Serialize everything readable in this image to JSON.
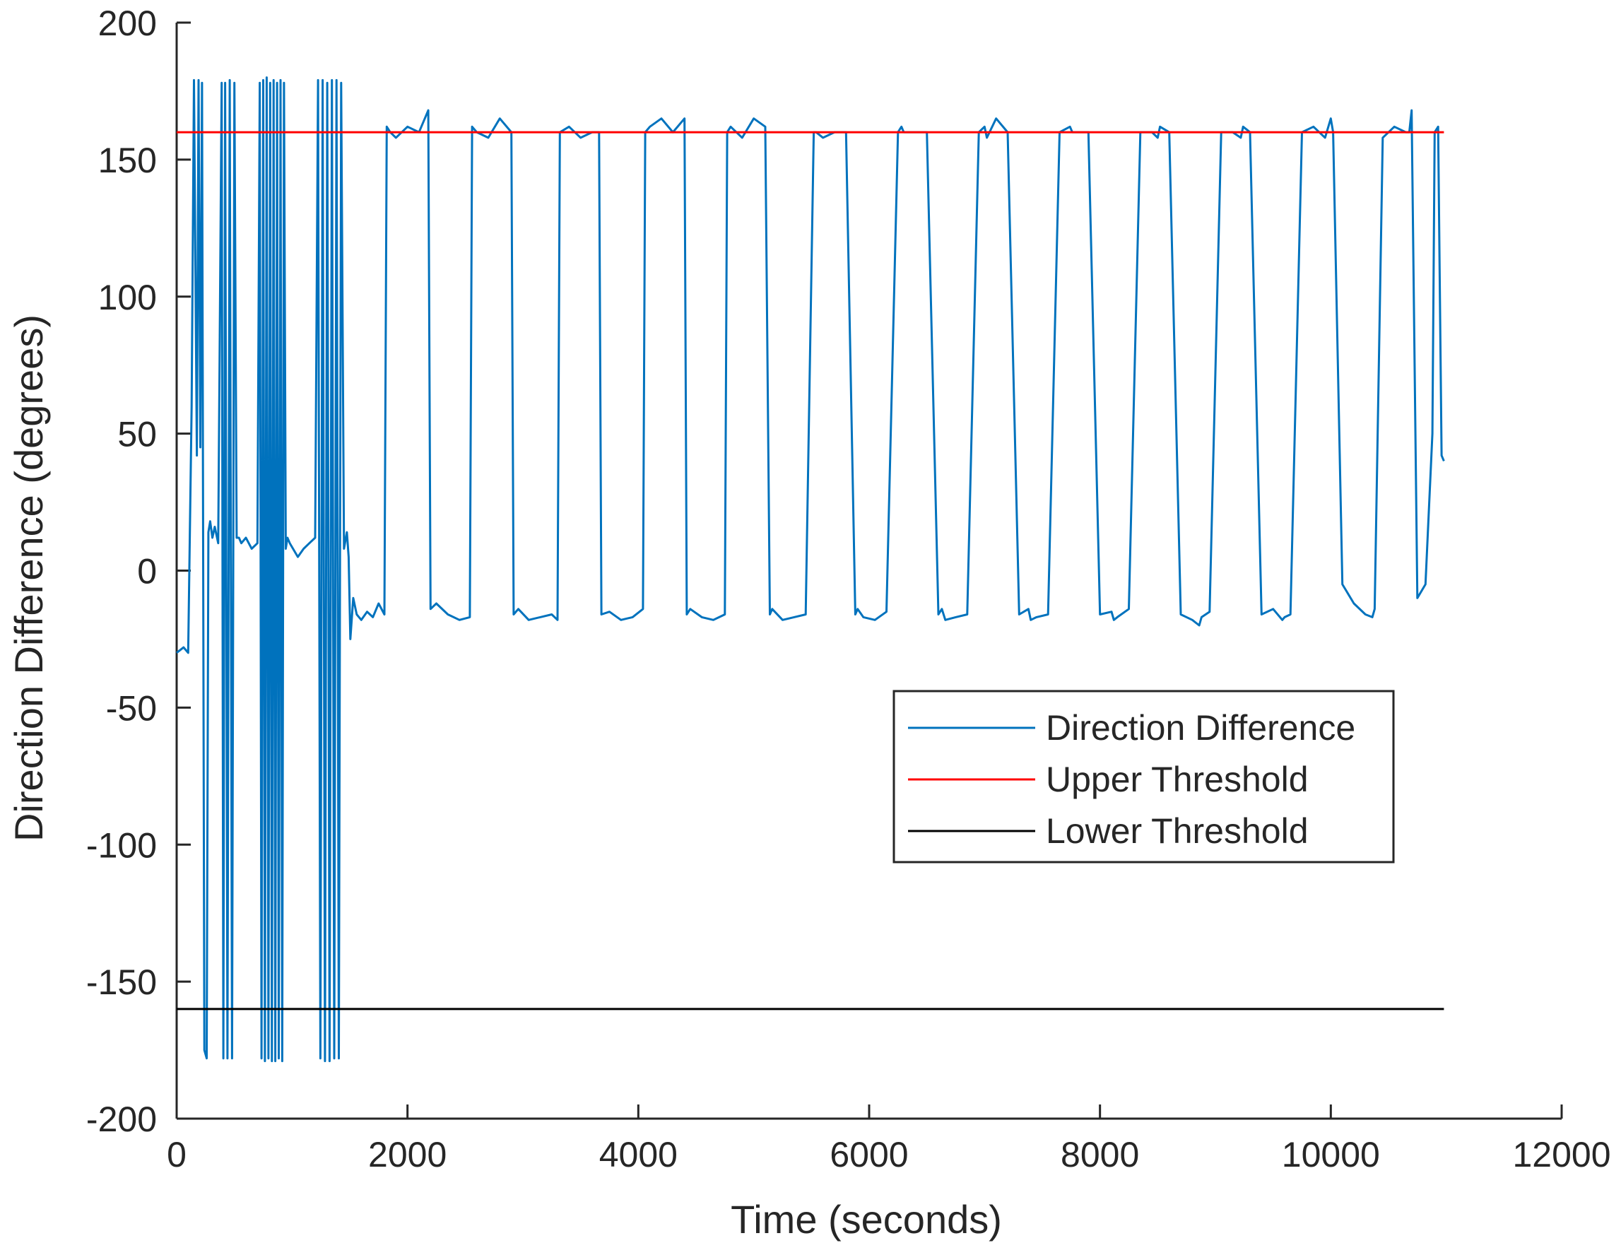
{
  "chart_data": {
    "type": "line",
    "title": "",
    "xlabel": "Time (seconds)",
    "ylabel": "Direction Difference (degrees)",
    "xlim": [
      0,
      12000
    ],
    "ylim": [
      -200,
      200
    ],
    "x_ticks": [
      0,
      2000,
      4000,
      6000,
      8000,
      10000,
      12000
    ],
    "y_ticks": [
      -200,
      -150,
      -100,
      -50,
      0,
      50,
      100,
      150,
      200
    ],
    "x_tick_labels": [
      "0",
      "2000",
      "4000",
      "6000",
      "8000",
      "10000",
      "12000"
    ],
    "y_tick_labels": [
      "-200",
      "-150",
      "-100",
      "-50",
      "0",
      "50",
      "100",
      "150",
      "200"
    ],
    "grid": false,
    "legend": {
      "placement": "center-right",
      "entries": [
        "Direction Difference",
        "Upper Threshold",
        "Lower Threshold"
      ]
    },
    "series": [
      {
        "name": "Direction Difference",
        "color": "#0072BD",
        "x": [
          0,
          60,
          100,
          130,
          150,
          175,
          190,
          205,
          220,
          240,
          260,
          275,
          290,
          310,
          330,
          360,
          390,
          405,
          420,
          440,
          460,
          480,
          500,
          520,
          540,
          560,
          600,
          650,
          700,
          720,
          735,
          750,
          765,
          780,
          795,
          810,
          825,
          840,
          855,
          870,
          885,
          900,
          915,
          930,
          945,
          960,
          980,
          1050,
          1100,
          1150,
          1200,
          1225,
          1245,
          1265,
          1285,
          1305,
          1325,
          1345,
          1365,
          1385,
          1405,
          1425,
          1450,
          1475,
          1490,
          1505,
          1530,
          1560,
          1600,
          1650,
          1700,
          1750,
          1800,
          1820,
          1850,
          1900,
          2000,
          2100,
          2180,
          2200,
          2250,
          2350,
          2450,
          2540,
          2560,
          2600,
          2700,
          2800,
          2900,
          2920,
          2960,
          3050,
          3150,
          3250,
          3300,
          3320,
          3400,
          3500,
          3600,
          3660,
          3680,
          3750,
          3850,
          3950,
          4040,
          4060,
          4100,
          4200,
          4300,
          4400,
          4420,
          4450,
          4550,
          4650,
          4750,
          4770,
          4800,
          4900,
          5000,
          5100,
          5140,
          5160,
          5250,
          5350,
          5450,
          5520,
          5540,
          5600,
          5700,
          5800,
          5880,
          5900,
          5950,
          6050,
          6150,
          6250,
          6280,
          6300,
          6400,
          6500,
          6600,
          6630,
          6660,
          6750,
          6850,
          6950,
          7000,
          7020,
          7100,
          7200,
          7300,
          7380,
          7400,
          7450,
          7550,
          7650,
          7740,
          7760,
          7800,
          7900,
          8000,
          8100,
          8120,
          8150,
          8250,
          8350,
          8450,
          8500,
          8520,
          8600,
          8700,
          8800,
          8860,
          8880,
          8950,
          9050,
          9150,
          9220,
          9240,
          9300,
          9400,
          9500,
          9580,
          9600,
          9650,
          9750,
          9850,
          9950,
          10000,
          10020,
          10100,
          10200,
          10300,
          10360,
          10380,
          10450,
          10550,
          10650,
          10680,
          10700,
          10750,
          10820,
          10880,
          10900,
          10930,
          10960,
          10980
        ],
        "y": [
          -30,
          -28,
          -30,
          60,
          179,
          42,
          179,
          45,
          178,
          -175,
          -178,
          14,
          18,
          12,
          16,
          10,
          178,
          -178,
          178,
          -178,
          179,
          -178,
          178,
          12,
          12,
          10,
          12,
          8,
          10,
          178,
          -178,
          179,
          -179,
          180,
          -178,
          178,
          -179,
          179,
          -179,
          178,
          -178,
          179,
          -179,
          178,
          8,
          12,
          10,
          5,
          8,
          10,
          12,
          179,
          -178,
          179,
          -179,
          178,
          -179,
          179,
          -178,
          179,
          -178,
          178,
          8,
          14,
          5,
          -25,
          -10,
          -16,
          -18,
          -15,
          -17,
          -12,
          -16,
          162,
          160,
          158,
          162,
          160,
          168,
          -14,
          -12,
          -16,
          -18,
          -17,
          162,
          160,
          158,
          165,
          160,
          -16,
          -14,
          -18,
          -17,
          -16,
          -18,
          160,
          162,
          158,
          160,
          160,
          -16,
          -15,
          -18,
          -17,
          -14,
          160,
          162,
          165,
          160,
          165,
          -16,
          -14,
          -17,
          -18,
          -16,
          160,
          162,
          158,
          165,
          162,
          -16,
          -14,
          -18,
          -17,
          -16,
          160,
          160,
          158,
          160,
          160,
          -16,
          -14,
          -17,
          -18,
          -15,
          160,
          162,
          160,
          160,
          160,
          -16,
          -14,
          -18,
          -17,
          -16,
          160,
          162,
          158,
          165,
          160,
          -16,
          -14,
          -18,
          -17,
          -16,
          160,
          162,
          160,
          160,
          160,
          -16,
          -15,
          -18,
          -17,
          -14,
          160,
          160,
          158,
          162,
          160,
          -16,
          -18,
          -20,
          -17,
          -15,
          160,
          160,
          158,
          162,
          160,
          -16,
          -14,
          -18,
          -17,
          -16,
          160,
          162,
          158,
          165,
          160,
          -5,
          -12,
          -16,
          -17,
          -14,
          158,
          162,
          160,
          160,
          168,
          -10,
          -5,
          50,
          160,
          162,
          42,
          40
        ]
      },
      {
        "name": "Upper Threshold",
        "color": "#FF0000",
        "x": [
          0,
          10980
        ],
        "y": [
          160,
          160
        ]
      },
      {
        "name": "Lower Threshold",
        "color": "#000000",
        "x": [
          0,
          10980
        ],
        "y": [
          -160,
          -160
        ]
      }
    ]
  }
}
